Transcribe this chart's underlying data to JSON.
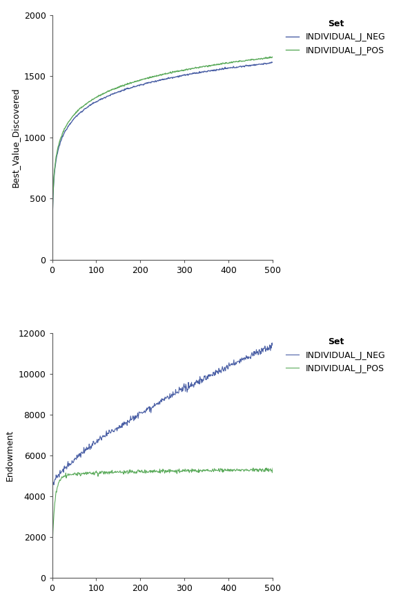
{
  "top_chart": {
    "ylabel": "Best_Value_Discovered",
    "xlim": [
      0,
      500
    ],
    "ylim": [
      0,
      2000
    ],
    "yticks": [
      0,
      500,
      1000,
      1500,
      2000
    ],
    "xticks": [
      0,
      100,
      200,
      300,
      400,
      500
    ],
    "neg_color": "#4A5FA5",
    "pos_color": "#5AAA5A",
    "legend_title": "Set",
    "legend_labels": [
      "INDIVIDUAL_J_NEG",
      "INDIVIDUAL_J_POS"
    ]
  },
  "bottom_chart": {
    "ylabel": "Endowment",
    "xlim": [
      0,
      500
    ],
    "ylim": [
      0,
      12000
    ],
    "yticks": [
      0,
      2000,
      4000,
      6000,
      8000,
      10000,
      12000
    ],
    "xticks": [
      0,
      100,
      200,
      300,
      400,
      500
    ],
    "neg_color": "#4A5FA5",
    "pos_color": "#5AAA5A",
    "legend_title": "Set",
    "legend_labels": [
      "INDIVIDUAL_J_NEG",
      "INDIVIDUAL_J_POS"
    ]
  },
  "background_color": "#ffffff",
  "plot_bg_color": "#ffffff",
  "font_size": 9,
  "label_font_size": 9,
  "tick_font_size": 9
}
